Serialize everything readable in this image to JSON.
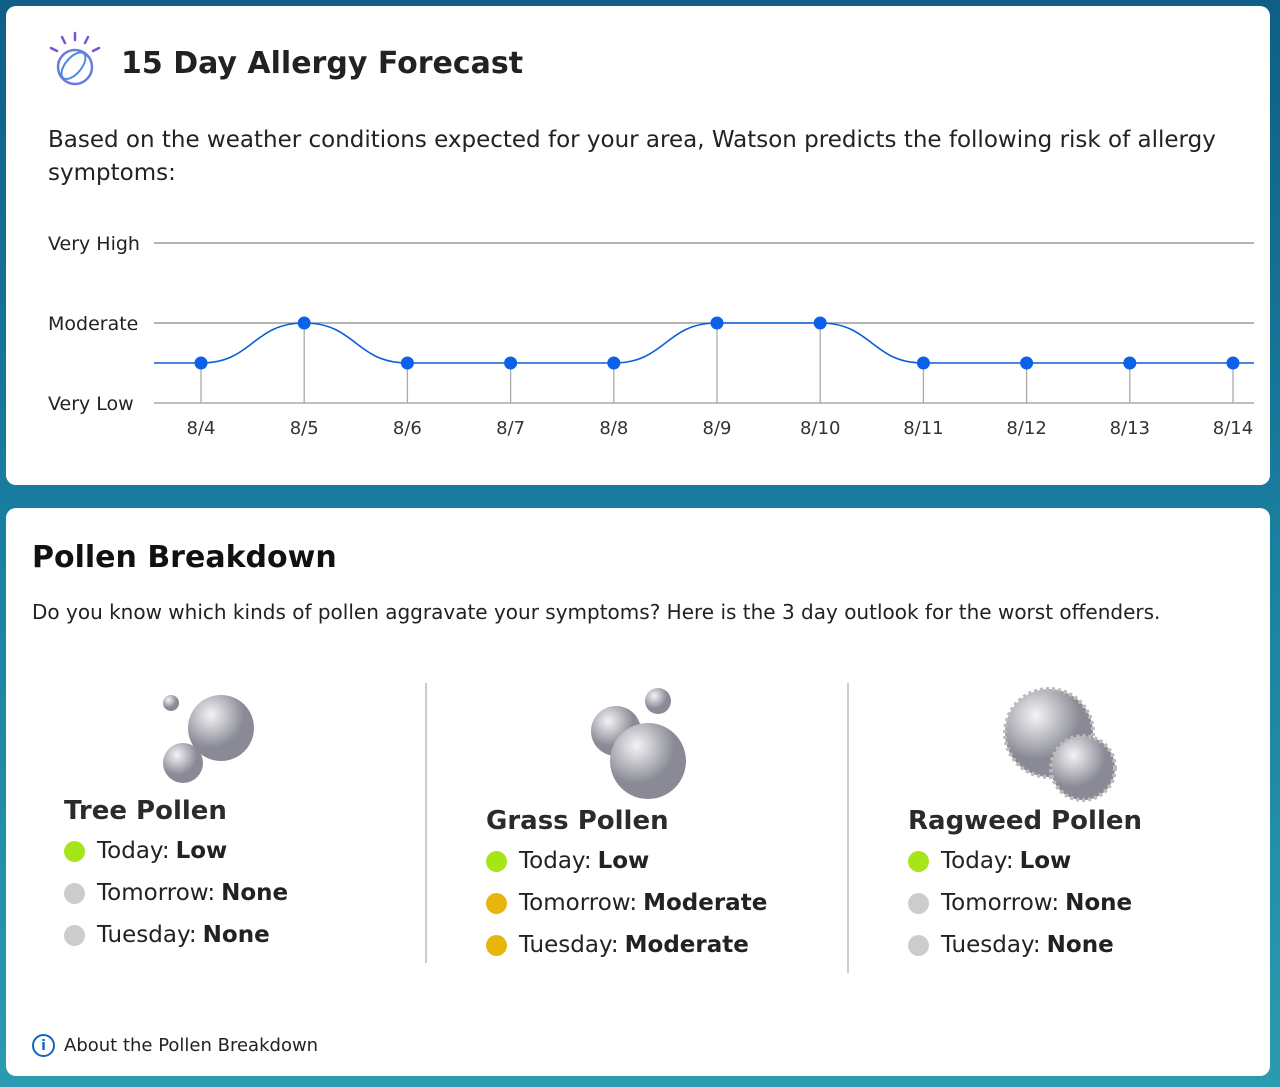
{
  "forecast": {
    "title": "15 Day Allergy Forecast",
    "description": "Based on the weather conditions expected for your area, Watson predicts the following risk of allergy symptoms:",
    "logo_icon": "ibm-watson-logo"
  },
  "chart_data": {
    "type": "line",
    "categories": [
      "8/4",
      "8/5",
      "8/6",
      "8/7",
      "8/8",
      "8/9",
      "8/10",
      "8/11",
      "8/12",
      "8/13",
      "8/14"
    ],
    "values": [
      1,
      2,
      1,
      1,
      1,
      2,
      2,
      1,
      1,
      1,
      1
    ],
    "y_tick_labels": [
      {
        "value": 0,
        "label": "Very Low"
      },
      {
        "value": 2,
        "label": "Moderate"
      },
      {
        "value": 4,
        "label": "Very High"
      }
    ],
    "ylim": [
      0,
      4
    ],
    "grid": true,
    "line_color": "#0b5fd6"
  },
  "pollen": {
    "title": "Pollen Breakdown",
    "subtitle": "Do you know which kinds of pollen aggravate your symptoms? Here is the 3 day outlook for the worst offenders.",
    "colors": {
      "Low": "#a6e619",
      "Moderate": "#e8b50c",
      "None": "#cccccc"
    },
    "types": [
      {
        "name": "Tree Pollen",
        "days": [
          {
            "label": "Today:",
            "level": "Low"
          },
          {
            "label": "Tomorrow:",
            "level": "None"
          },
          {
            "label": "Tuesday:",
            "level": "None"
          }
        ]
      },
      {
        "name": "Grass Pollen",
        "days": [
          {
            "label": "Today:",
            "level": "Low"
          },
          {
            "label": "Tomorrow:",
            "level": "Moderate"
          },
          {
            "label": "Tuesday:",
            "level": "Moderate"
          }
        ]
      },
      {
        "name": "Ragweed Pollen",
        "days": [
          {
            "label": "Today:",
            "level": "Low"
          },
          {
            "label": "Tomorrow:",
            "level": "None"
          },
          {
            "label": "Tuesday:",
            "level": "None"
          }
        ]
      }
    ],
    "about_link": "About the Pollen Breakdown"
  }
}
